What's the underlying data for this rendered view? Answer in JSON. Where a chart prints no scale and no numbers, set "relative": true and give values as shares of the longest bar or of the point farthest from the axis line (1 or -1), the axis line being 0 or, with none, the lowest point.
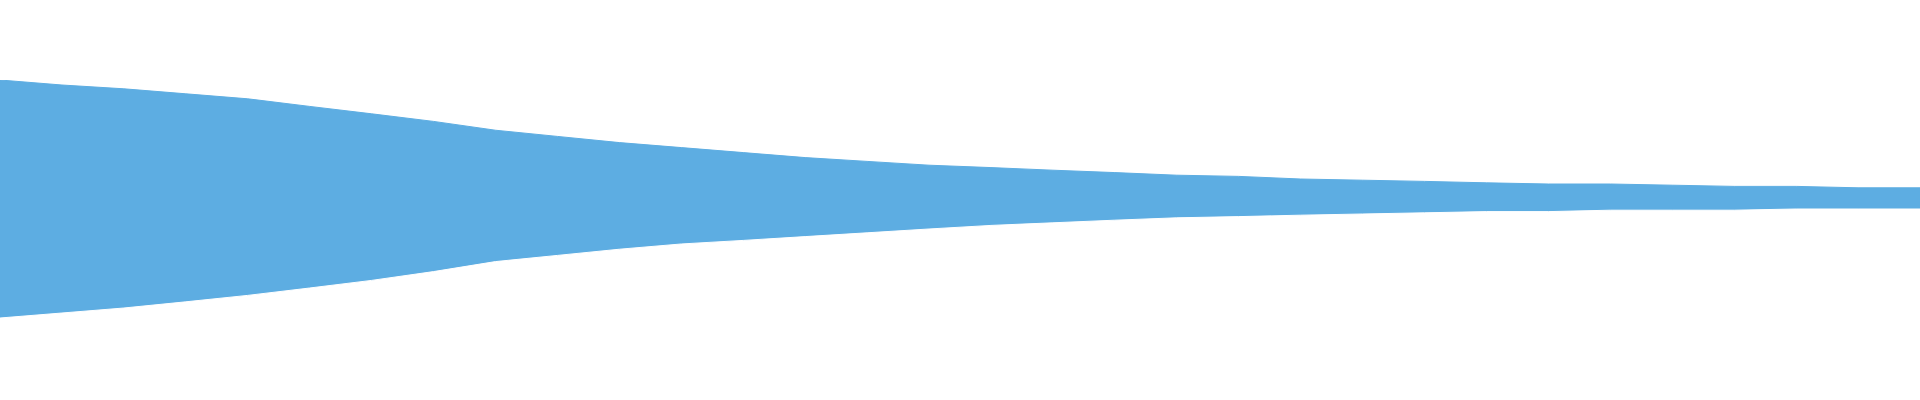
{
  "chart_data": {
    "type": "area",
    "relative": true,
    "categories": [
      null,
      null,
      null,
      null,
      null,
      null,
      null,
      null,
      null,
      null,
      null,
      null,
      null,
      null,
      null,
      null,
      null,
      null,
      null,
      null,
      null,
      null,
      null,
      null,
      null,
      null,
      null,
      null,
      null,
      null,
      null,
      null
    ],
    "series": [
      {
        "color": "#5dade2",
        "values": [
          1,
          0.979,
          0.963,
          0.942,
          0.921,
          0.889,
          0.858,
          0.826,
          0.789,
          0.763,
          0.737,
          0.716,
          0.695,
          0.674,
          0.658,
          0.642,
          0.632,
          0.621,
          0.611,
          0.6,
          0.595,
          0.584,
          0.579,
          0.574,
          0.568,
          0.563,
          0.563,
          0.558,
          0.553,
          0.553,
          0.547,
          0.547
        ]
      },
      {
        "color": "#ffffff",
        "values": [
          0,
          0.021,
          0.042,
          0.068,
          0.095,
          0.126,
          0.158,
          0.195,
          0.237,
          0.263,
          0.289,
          0.311,
          0.326,
          0.342,
          0.358,
          0.374,
          0.389,
          0.4,
          0.411,
          0.421,
          0.426,
          0.432,
          0.437,
          0.442,
          0.447,
          0.447,
          0.453,
          0.453,
          0.453,
          0.458,
          0.458,
          0.458
        ]
      }
    ]
  }
}
